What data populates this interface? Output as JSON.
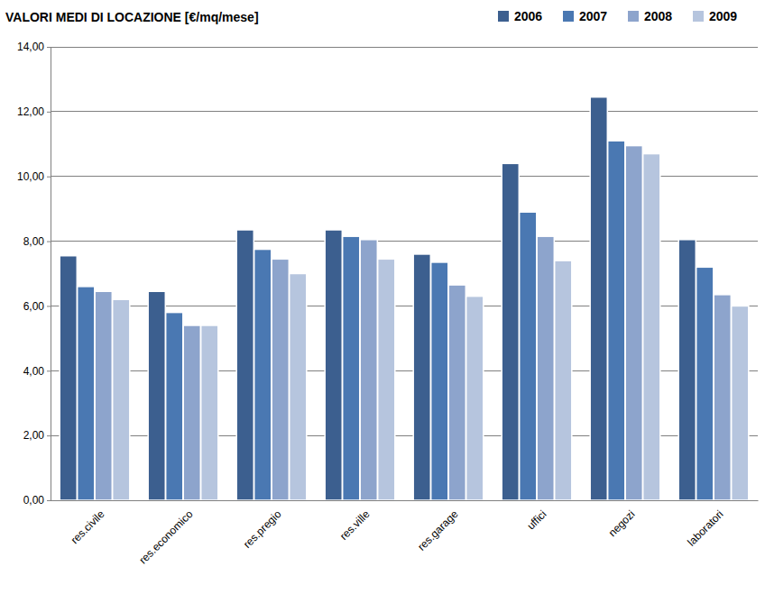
{
  "chart_data": {
    "type": "bar",
    "title": "VALORI MEDI DI LOCAZIONE [€/mq/mese]",
    "categories": [
      "res.civile",
      "res.economico",
      "res.pregio",
      "res.ville",
      "res.garage",
      "uffici",
      "negozi",
      "laboratori"
    ],
    "series": [
      {
        "name": "2006",
        "color": "#3c5f8f",
        "values": [
          7.55,
          6.45,
          8.35,
          8.35,
          7.6,
          10.4,
          12.45,
          8.05
        ]
      },
      {
        "name": "2007",
        "color": "#4a78b2",
        "values": [
          6.6,
          5.8,
          7.75,
          8.15,
          7.35,
          8.9,
          11.1,
          7.2
        ]
      },
      {
        "name": "2008",
        "color": "#8da4cc",
        "values": [
          6.45,
          5.4,
          7.45,
          8.05,
          6.65,
          8.15,
          10.95,
          6.35
        ]
      },
      {
        "name": "2009",
        "color": "#b6c5de",
        "values": [
          6.2,
          5.4,
          7.0,
          7.45,
          6.3,
          7.4,
          10.7,
          6.0
        ]
      }
    ],
    "ylim": [
      0,
      14
    ],
    "yticks": [
      {
        "value": 0,
        "label": "0,00"
      },
      {
        "value": 2,
        "label": "2,00"
      },
      {
        "value": 4,
        "label": "4,00"
      },
      {
        "value": 6,
        "label": "6,00"
      },
      {
        "value": 8,
        "label": "8,00"
      },
      {
        "value": 10,
        "label": "10,00"
      },
      {
        "value": 12,
        "label": "12,00"
      },
      {
        "value": 14,
        "label": "14,00"
      }
    ],
    "grid": true,
    "legend": "top"
  }
}
